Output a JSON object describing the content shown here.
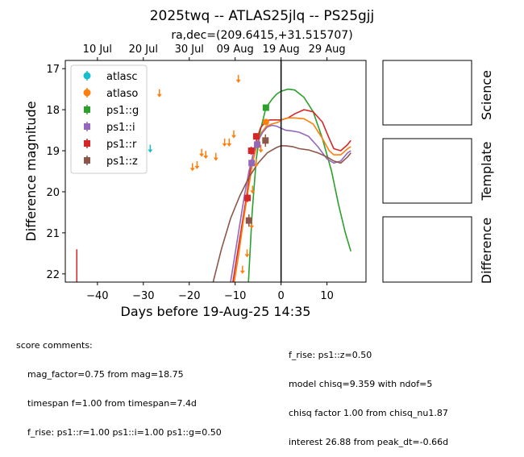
{
  "chart_data": {
    "type": "scatter",
    "title": "2025twq -- ATLAS25jlq -- PS25gjj",
    "subtitle": "ra,dec=(209.6415,+31.515707)",
    "xlabel": "Days before 19-Aug-25 14:35",
    "ylabel": "Difference magnitude",
    "xlim": [
      -47,
      18.5
    ],
    "ylim": [
      22.2,
      16.8
    ],
    "y_inverted": true,
    "x_ticks": [
      -40,
      -30,
      -20,
      -10,
      0,
      10
    ],
    "y_ticks": [
      17,
      18,
      19,
      20,
      21,
      22
    ],
    "top_axis_ticks": [
      {
        "label": "10 Jul",
        "x": -40
      },
      {
        "label": "20 Jul",
        "x": -30
      },
      {
        "label": "30 Jul",
        "x": -20
      },
      {
        "label": "09 Aug",
        "x": -10
      },
      {
        "label": "19 Aug",
        "x": 0
      },
      {
        "label": "29 Aug",
        "x": 10
      }
    ],
    "vline_x": 0,
    "legend_position": "top-left",
    "series": [
      {
        "name": "atlasc",
        "color": "#17becf",
        "marker": "circle",
        "limits": [
          {
            "x": -28.5,
            "y": 18.95
          }
        ]
      },
      {
        "name": "atlaso",
        "color": "#ff7f0e",
        "marker": "circle",
        "points": [
          {
            "x": -3.3,
            "y": 18.3,
            "err": 0.05
          }
        ],
        "limits": [
          {
            "x": -26.5,
            "y": 17.6
          },
          {
            "x": -19.3,
            "y": 19.4
          },
          {
            "x": -18.3,
            "y": 19.35
          },
          {
            "x": -17.3,
            "y": 19.05
          },
          {
            "x": -16.4,
            "y": 19.1
          },
          {
            "x": -14.2,
            "y": 19.15
          },
          {
            "x": -12.3,
            "y": 18.8
          },
          {
            "x": -11.3,
            "y": 18.8
          },
          {
            "x": -10.3,
            "y": 18.6
          },
          {
            "x": -9.3,
            "y": 17.25
          },
          {
            "x": -8.4,
            "y": 21.9
          },
          {
            "x": -7.4,
            "y": 21.5
          },
          {
            "x": -6.4,
            "y": 20.8
          },
          {
            "x": -6.2,
            "y": 19.95
          },
          {
            "x": -5.4,
            "y": 19.3
          },
          {
            "x": -4.4,
            "y": 18.95
          }
        ]
      },
      {
        "name": "ps1::g",
        "color": "#2ca02c",
        "marker": "square",
        "points": [
          {
            "x": -3.3,
            "y": 17.95,
            "err": 0.05
          }
        ]
      },
      {
        "name": "ps1::i",
        "color": "#9467bd",
        "marker": "square",
        "points": [
          {
            "x": -6.4,
            "y": 19.3,
            "err": 0.08
          },
          {
            "x": -5.2,
            "y": 18.85,
            "err": 0.06
          }
        ]
      },
      {
        "name": "ps1::r",
        "color": "#d62728",
        "marker": "square",
        "points": [
          {
            "x": -7.3,
            "y": 20.15,
            "err": 0.1
          },
          {
            "x": -6.5,
            "y": 19.0,
            "err": 0.1
          },
          {
            "x": -5.4,
            "y": 18.65,
            "err": 0.08
          }
        ],
        "limits": [
          {
            "x": -44.5,
            "y": 21.4
          }
        ]
      },
      {
        "name": "ps1::z",
        "color": "#8c564b",
        "marker": "square",
        "points": [
          {
            "x": -7.0,
            "y": 20.7,
            "err": 0.15
          },
          {
            "x": -3.4,
            "y": 18.75,
            "err": 0.15
          }
        ]
      }
    ],
    "models": [
      {
        "name": "ps1::g",
        "color": "#2ca02c",
        "x": [
          -7.1,
          -6.3,
          -5.4,
          -4.5,
          -3.3,
          -2,
          -1,
          0,
          1.5,
          3,
          5,
          7,
          9,
          11,
          12.5,
          14,
          15.2
        ],
        "y": [
          22.2,
          20.5,
          19.2,
          18.5,
          17.95,
          17.75,
          17.62,
          17.55,
          17.5,
          17.52,
          17.7,
          18.05,
          18.7,
          19.5,
          20.3,
          21.0,
          21.45
        ]
      },
      {
        "name": "ps1::r",
        "color": "#d62728",
        "x": [
          -10.5,
          -9.5,
          -8.5,
          -7.5,
          -6.5,
          -5.5,
          -4.5,
          -3.5,
          -2.5,
          -1,
          0,
          1.5,
          3,
          5,
          7,
          9,
          10.5,
          11.5,
          13,
          14.5,
          15.2
        ],
        "y": [
          22.2,
          21.5,
          20.8,
          20.1,
          19.3,
          18.8,
          18.45,
          18.3,
          18.25,
          18.25,
          18.25,
          18.2,
          18.1,
          18.0,
          18.05,
          18.3,
          18.7,
          18.95,
          19.0,
          18.85,
          18.75
        ]
      },
      {
        "name": "atlaso",
        "color": "#ff7f0e",
        "x": [
          -10.2,
          -9.2,
          -8.2,
          -7.2,
          -6.2,
          -5.2,
          -4.2,
          -3.2,
          -2,
          -0.5,
          0,
          1.5,
          3,
          5,
          7,
          9,
          10.5,
          11.5,
          13,
          14.5,
          15.2
        ],
        "y": [
          22.2,
          21.5,
          20.7,
          20.0,
          19.3,
          18.85,
          18.55,
          18.4,
          18.35,
          18.3,
          18.25,
          18.2,
          18.2,
          18.22,
          18.35,
          18.7,
          19.0,
          19.1,
          19.1,
          18.95,
          18.9
        ]
      },
      {
        "name": "ps1::i",
        "color": "#9467bd",
        "x": [
          -11,
          -10,
          -9,
          -8,
          -7,
          -6,
          -5,
          -4,
          -3,
          -2,
          -1,
          0,
          1,
          2.5,
          4,
          6,
          8,
          10,
          11.5,
          13,
          14.5,
          15.2
        ],
        "y": [
          22.2,
          21.5,
          20.8,
          20.1,
          19.5,
          19.05,
          18.75,
          18.55,
          18.42,
          18.38,
          18.4,
          18.45,
          18.5,
          18.52,
          18.55,
          18.65,
          18.9,
          19.2,
          19.3,
          19.25,
          19.05,
          19.0
        ]
      },
      {
        "name": "ps1::z",
        "color": "#8c564b",
        "x": [
          -14.8,
          -13,
          -11,
          -9,
          -7,
          -5,
          -3,
          -1,
          0,
          1,
          2.5,
          4,
          6,
          8,
          10,
          11.5,
          13,
          14.5,
          15.2
        ],
        "y": [
          22.2,
          21.4,
          20.65,
          20.1,
          19.65,
          19.3,
          19.05,
          18.92,
          18.88,
          18.88,
          18.9,
          18.95,
          18.98,
          19.05,
          19.15,
          19.25,
          19.3,
          19.15,
          19.05
        ]
      }
    ]
  },
  "panels": {
    "science": "Science",
    "template": "Template",
    "difference": "Difference"
  },
  "comments": {
    "heading": "score comments:",
    "left": [
      "mag_factor=0.75 from mag=18.75",
      "timespan f=1.00 from timespan=7.4d",
      "f_rise: ps1::r=1.00 ps1::i=1.00 ps1::g=0.50"
    ],
    "right": [
      "f_rise: ps1::z=0.50",
      "model chisq=9.359 with ndof=5",
      "chisq factor 1.00 from chisq_nu1.87",
      "interest 26.88 from peak_dt=-0.66d"
    ]
  }
}
